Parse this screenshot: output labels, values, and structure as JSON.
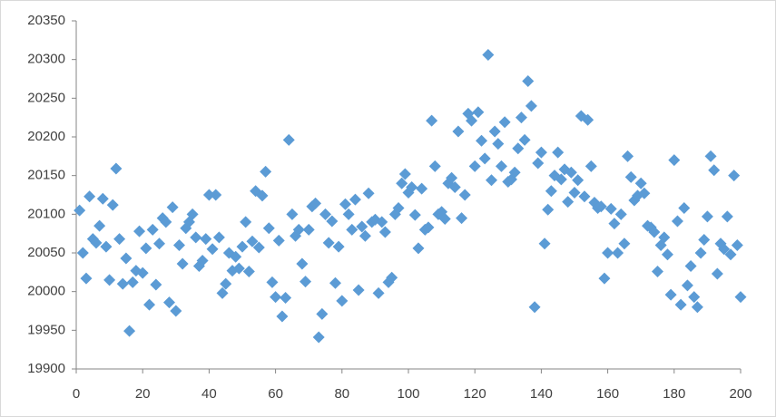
{
  "chart_data": {
    "type": "scatter",
    "x": [
      1,
      2,
      3,
      4,
      5,
      6,
      7,
      8,
      9,
      10,
      11,
      12,
      13,
      14,
      15,
      16,
      17,
      18,
      19,
      20,
      21,
      22,
      23,
      24,
      25,
      26,
      27,
      28,
      29,
      30,
      31,
      32,
      33,
      34,
      35,
      36,
      37,
      38,
      39,
      40,
      41,
      42,
      43,
      44,
      45,
      46,
      47,
      48,
      49,
      50,
      51,
      52,
      53,
      54,
      55,
      56,
      57,
      58,
      59,
      60,
      61,
      62,
      63,
      64,
      65,
      66,
      67,
      68,
      69,
      70,
      71,
      72,
      73,
      74,
      75,
      76,
      77,
      78,
      79,
      80,
      81,
      82,
      83,
      84,
      85,
      86,
      87,
      88,
      89,
      90,
      91,
      92,
      93,
      94,
      95,
      96,
      97,
      98,
      99,
      100,
      101,
      102,
      103,
      104,
      105,
      106,
      107,
      108,
      109,
      110,
      111,
      112,
      113,
      114,
      115,
      116,
      117,
      118,
      119,
      120,
      121,
      122,
      123,
      124,
      125,
      126,
      127,
      128,
      129,
      130,
      131,
      132,
      133,
      134,
      135,
      136,
      137,
      138,
      139,
      140,
      141,
      142,
      143,
      144,
      145,
      146,
      147,
      148,
      149,
      150,
      151,
      152,
      153,
      154,
      155,
      156,
      157,
      158,
      159,
      160,
      161,
      162,
      163,
      164,
      165,
      166,
      167,
      168,
      169,
      170,
      171,
      172,
      173,
      174,
      175,
      176,
      177,
      178,
      179,
      180,
      181,
      182,
      183,
      184,
      185,
      186,
      187,
      188,
      189,
      190,
      191,
      192,
      193,
      194,
      195,
      196,
      197,
      198,
      199,
      200
    ],
    "series": [
      {
        "color": "#5b9bd5",
        "values": [
          20105,
          20050,
          20017,
          20123,
          20068,
          20063,
          20085,
          20120,
          20058,
          20015,
          20112,
          20159,
          20068,
          20010,
          20043,
          19949,
          20012,
          20027,
          20078,
          20024,
          20056,
          19983,
          20080,
          20009,
          20062,
          20095,
          20090,
          19986,
          20109,
          19975,
          20060,
          20036,
          20082,
          20090,
          20100,
          20070,
          20033,
          20040,
          20068,
          20125,
          20055,
          20125,
          20070,
          19998,
          20010,
          20050,
          20027,
          20045,
          20030,
          20058,
          20090,
          20026,
          20065,
          20130,
          20057,
          20124,
          20155,
          20082,
          20012,
          19993,
          20066,
          19968,
          19992,
          20196,
          20100,
          20072,
          20080,
          20036,
          20013,
          20080,
          20110,
          20114,
          19941,
          19971,
          20100,
          20063,
          20091,
          20011,
          20058,
          19988,
          20113,
          20100,
          20080,
          20119,
          20002,
          20084,
          20072,
          20127,
          20090,
          20093,
          19998,
          20090,
          20077,
          20012,
          20018,
          20100,
          20108,
          20140,
          20152,
          20128,
          20135,
          20099,
          20056,
          20133,
          20080,
          20083,
          20221,
          20162,
          20100,
          20103,
          20094,
          20140,
          20147,
          20135,
          20207,
          20095,
          20125,
          20230,
          20221,
          20162,
          20232,
          20195,
          20172,
          20306,
          20144,
          20207,
          20191,
          20162,
          20219,
          20142,
          20145,
          20154,
          20185,
          20225,
          20196,
          20272,
          20240,
          19980,
          20166,
          20180,
          20062,
          20106,
          20130,
          20150,
          20180,
          20145,
          20158,
          20116,
          20154,
          20128,
          20144,
          20227,
          20123,
          20222,
          20162,
          20115,
          20108,
          20110,
          20017,
          20050,
          20107,
          20088,
          20050,
          20100,
          20062,
          20175,
          20148,
          20118,
          20124,
          20140,
          20127,
          20085,
          20083,
          20077,
          20026,
          20060,
          20070,
          20048,
          19996,
          20170,
          20091,
          19983,
          20108,
          20008,
          20033,
          19993,
          19980,
          20050,
          20067,
          20097,
          20175,
          20157,
          20023,
          20062,
          20055,
          20097,
          20048,
          20150,
          20060,
          19993
        ]
      }
    ],
    "xlim": [
      0,
      200
    ],
    "xticks": [
      0,
      20,
      40,
      60,
      80,
      100,
      120,
      140,
      160,
      180,
      200
    ],
    "ylim": [
      19900,
      20350
    ],
    "yticks": [
      19900,
      19950,
      20000,
      20050,
      20100,
      20150,
      20200,
      20250,
      20300,
      20350
    ],
    "grid": false
  }
}
